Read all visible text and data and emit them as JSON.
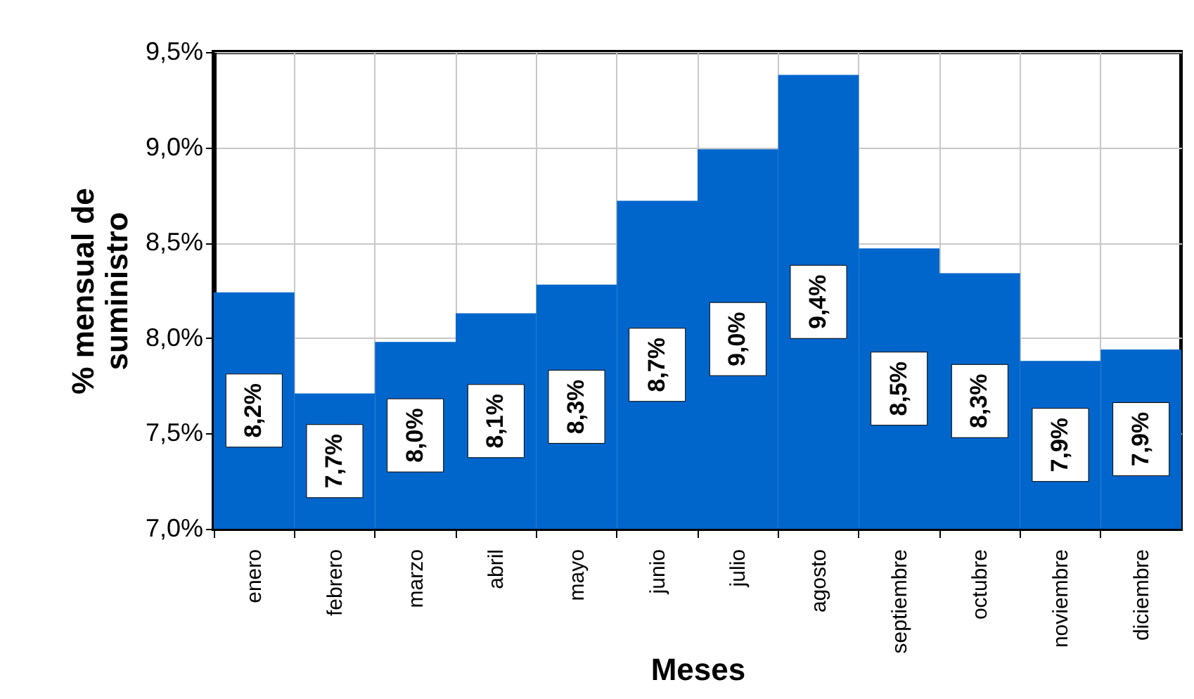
{
  "chart_data": {
    "type": "bar",
    "xlabel": "Meses",
    "ylabel": "% mensual de\nsuministro",
    "categories": [
      "enero",
      "febrero",
      "marzo",
      "abril",
      "mayo",
      "junio",
      "julio",
      "agosto",
      "septiembre",
      "octubre",
      "noviembre",
      "diciembre"
    ],
    "values": [
      8.24,
      7.71,
      7.98,
      8.13,
      8.28,
      8.72,
      8.99,
      9.38,
      8.47,
      8.34,
      7.88,
      7.94
    ],
    "value_labels": [
      "8,2%",
      "7,7%",
      "8,0%",
      "8,1%",
      "8,3%",
      "8,7%",
      "9,0%",
      "9,4%",
      "8,5%",
      "8,3%",
      "7,9%",
      "7,9%"
    ],
    "color": "#0066cc",
    "ylim": [
      7.0,
      9.5
    ],
    "yticks": [
      {
        "value": 7.0,
        "label": "7,0%"
      },
      {
        "value": 7.5,
        "label": "7,5%"
      },
      {
        "value": 8.0,
        "label": "8,0%"
      },
      {
        "value": 8.5,
        "label": "8,5%"
      },
      {
        "value": 9.0,
        "label": "9,0%"
      },
      {
        "value": 9.5,
        "label": "9,5%"
      }
    ],
    "grid": true
  }
}
